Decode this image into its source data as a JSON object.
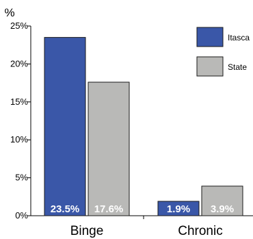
{
  "chart_data": {
    "type": "bar",
    "title": "",
    "xlabel": "",
    "ylabel": "%",
    "categories": [
      "Binge",
      "Chronic"
    ],
    "series": [
      {
        "name": "Itasca",
        "color": "#3a57a8",
        "values": [
          23.5,
          1.9
        ],
        "labels": [
          "23.5%",
          "1.9%"
        ]
      },
      {
        "name": "State",
        "color": "#b9b9b7",
        "values": [
          17.6,
          3.9
        ],
        "labels": [
          "17.6%",
          "3.9%"
        ]
      }
    ],
    "ylim": [
      0,
      25
    ],
    "yticks": [
      0,
      5,
      10,
      15,
      20,
      25
    ],
    "ytick_labels": [
      "0%",
      "5%",
      "10%",
      "15%",
      "20%",
      "25%"
    ],
    "legend_position": "top-right",
    "grid": false,
    "bar_label_color": "#ffffff",
    "axis_color": "#000000"
  }
}
